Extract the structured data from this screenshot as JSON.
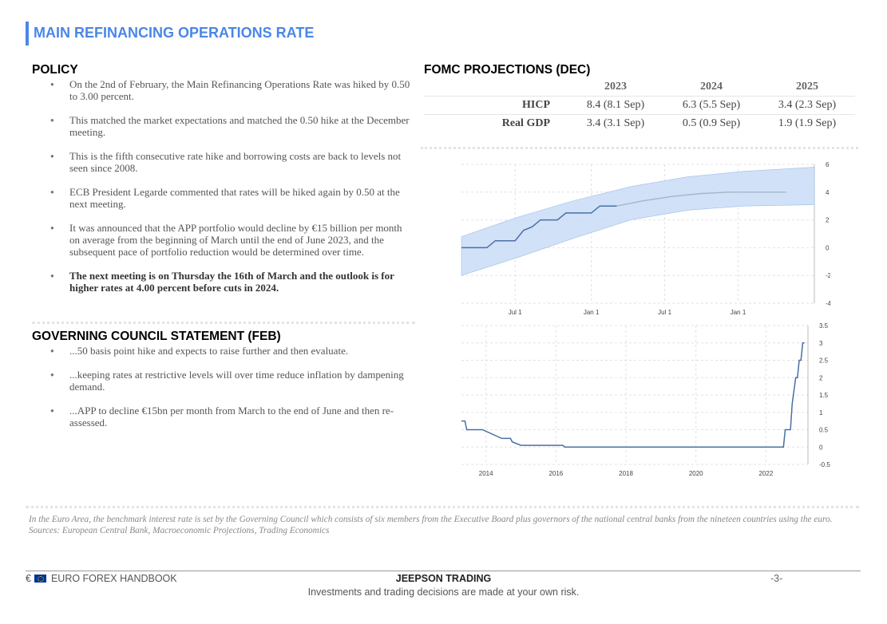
{
  "page_title": "MAIN REFINANCING OPERATIONS RATE",
  "policy": {
    "heading": "POLICY",
    "bullets": [
      "On the 2nd of February, the Main Refinancing Operations Rate was hiked by 0.50 to 3.00 percent.",
      "This matched the market expectations and matched the 0.50 hike at the December meeting.",
      "This is the fifth consecutive rate hike and borrowing costs are back to levels not seen since 2008.",
      "ECB President Legarde commented that rates will be hiked again by 0.50 at the next meeting.",
      "It was announced that the APP portfolio would decline by €15 billion per month on average from the beginning of March until the end of June 2023, and the subsequent pace of portfolio reduction would be determined over time.",
      "The next meeting is on Thursday the 16th of March and the outlook is for higher rates at 4.00 percent before cuts in 2024."
    ]
  },
  "council": {
    "heading": "GOVERNING COUNCIL STATEMENT (FEB)",
    "bullets": [
      "...50 basis point hike and expects to raise further and then evaluate.",
      "...keeping rates at restrictive levels will over time reduce inflation by dampening demand.",
      "...APP to decline €15bn per month from March to the end of June and then re-assessed."
    ]
  },
  "fomc": {
    "heading": "FOMC PROJECTIONS (DEC)",
    "columns": [
      "2023",
      "2024",
      "2025"
    ],
    "rows": [
      {
        "label": "HICP",
        "values": [
          "8.4 (8.1 Sep)",
          "6.3 (5.5 Sep)",
          "3.4 (2.3 Sep)"
        ]
      },
      {
        "label": "Real GDP",
        "values": [
          "3.4 (3.1 Sep)",
          "0.5 (0.9 Sep)",
          "1.9 (1.9 Sep)"
        ]
      }
    ]
  },
  "chart_data": [
    {
      "type": "line",
      "x_tick_labels": [
        "Jul 1",
        "Jan 1",
        "Jul 1",
        "Jan 1"
      ],
      "y_ticks": [
        6,
        4,
        2,
        0,
        -2,
        -4
      ],
      "ylim": [
        -4,
        6
      ],
      "grid": true,
      "colors": {
        "line": "#4a6fa5",
        "band": "#c9dcf7",
        "projection": "#a8b8cc"
      },
      "series": [
        {
          "x": [
            0,
            0.3,
            0.6,
            0.9,
            1.2,
            1.5,
            1.9,
            2.2,
            2.5,
            2.8,
            3.1,
            3.4,
            3.7,
            4.0,
            4.3,
            4.6,
            4.9,
            5.2,
            5.5
          ],
          "y": [
            0,
            0,
            0,
            0,
            0.5,
            0.5,
            0.5,
            1.25,
            1.5,
            2,
            2,
            2,
            2.5,
            2.5,
            2.5,
            2.5,
            3,
            3,
            3
          ]
        }
      ],
      "projection": {
        "x": [
          5.5,
          6.5,
          7.5,
          8.5,
          9.5,
          10.5,
          11.5
        ],
        "y": [
          3,
          3.4,
          3.7,
          3.9,
          4,
          4,
          4
        ]
      },
      "band": {
        "x": [
          0,
          2,
          4,
          6,
          8,
          10,
          12.5
        ],
        "upper": [
          0.8,
          2.2,
          3.4,
          4.4,
          5.1,
          5.5,
          5.8
        ],
        "lower": [
          -2,
          -0.7,
          0.7,
          2,
          2.7,
          3.0,
          3.1
        ]
      },
      "xlim": [
        0,
        12.5
      ],
      "x_tick_positions": [
        1.9,
        4.6,
        7.2,
        9.8
      ]
    },
    {
      "type": "line",
      "x_tick_labels": [
        "2014",
        "2016",
        "2018",
        "2020",
        "2022"
      ],
      "x_tick_positions": [
        2014,
        2016,
        2018,
        2020,
        2022
      ],
      "y_ticks": [
        3.5,
        3,
        2.5,
        2,
        1.5,
        1,
        0.5,
        0,
        -0.5
      ],
      "ylim": [
        -0.5,
        3.5
      ],
      "xlim": [
        2013.3,
        2023.2
      ],
      "grid": true,
      "colors": {
        "line": "#4a6fa5"
      },
      "series": [
        {
          "x": [
            2013.3,
            2013.4,
            2013.45,
            2013.9,
            2014.45,
            2014.7,
            2014.75,
            2015.0,
            2016.2,
            2016.25,
            2022.5,
            2022.55,
            2022.7,
            2022.75,
            2022.85,
            2022.9,
            2022.95,
            2023.0,
            2023.05,
            2023.1
          ],
          "y": [
            0.75,
            0.75,
            0.5,
            0.5,
            0.25,
            0.25,
            0.15,
            0.05,
            0.05,
            0,
            0,
            0.5,
            0.5,
            1.25,
            2,
            2,
            2.5,
            2.5,
            3,
            3
          ]
        }
      ]
    }
  ],
  "foot_note": {
    "line1": "In the Euro Area, the benchmark interest rate is set by the  Governing Council which consists of six members from the Executive Board plus governors of the national central banks from the nineteen countries using the euro.",
    "line2": "Sources: European Central Bank, Macroeconomic Projections, Trading Economics"
  },
  "footer": {
    "euro_symbol": "€",
    "left": "EURO FOREX HANDBOOK",
    "center": "JEEPSON TRADING",
    "sub": "Investments and trading decisions are made at your own risk.",
    "page": "-3-"
  }
}
